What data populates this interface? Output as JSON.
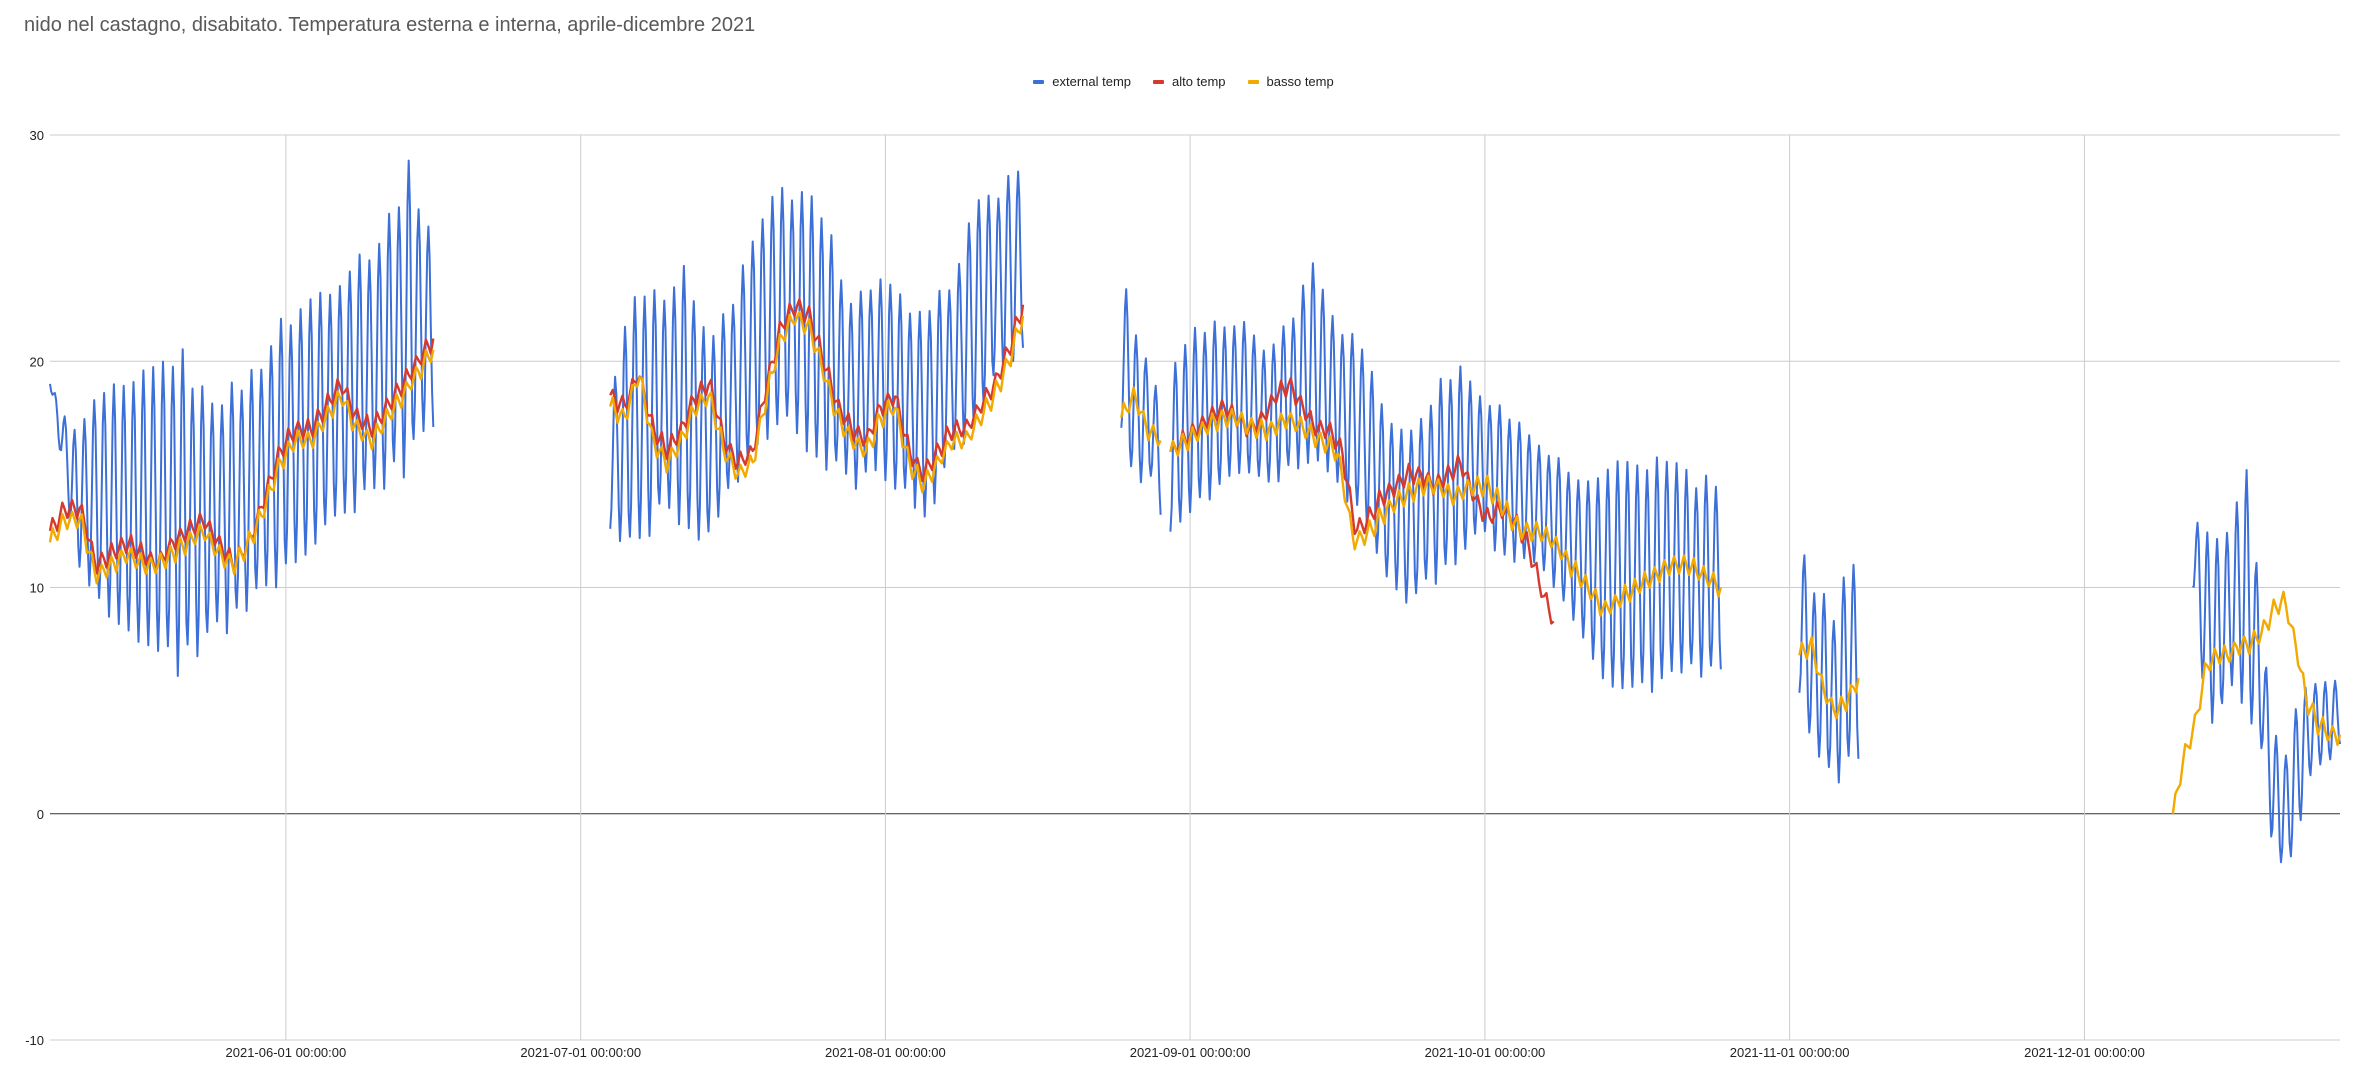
{
  "chart_data": {
    "type": "line",
    "title": "nido nel castagno, disabitato. Temperatura esterna e interna, aprile-dicembre 2021",
    "legend_position": "top-center",
    "grid": true,
    "xlim": [
      "2021-05-08",
      "2021-12-27"
    ],
    "ylim": [
      -10,
      30
    ],
    "y_ticks": [
      "-10",
      "0",
      "10",
      "20",
      "30"
    ],
    "x_ticks": [
      {
        "label": "2021-06-01 00:00:00",
        "date": "2021-06-01"
      },
      {
        "label": "2021-07-01 00:00:00",
        "date": "2021-07-01"
      },
      {
        "label": "2021-08-01 00:00:00",
        "date": "2021-08-01"
      },
      {
        "label": "2021-09-01 00:00:00",
        "date": "2021-09-01"
      },
      {
        "label": "2021-10-01 00:00:00",
        "date": "2021-10-01"
      },
      {
        "label": "2021-11-01 00:00:00",
        "date": "2021-11-01"
      },
      {
        "label": "2021-12-01 00:00:00",
        "date": "2021-12-01"
      }
    ],
    "series": [
      {
        "name": "external  temp",
        "color": "#3c6fd8",
        "segments": [
          {
            "start": "2021-05-08",
            "end": "2021-06-16",
            "min": [
              19,
              11,
              9,
              8,
              7,
              6,
              7,
              8,
              9,
              10,
              11,
              12,
              13,
              14,
              15,
              17
            ],
            "max": [
              19,
              17,
              19,
              19,
              20,
              21,
              19,
              19,
              20,
              22,
              23,
              24,
              25,
              26,
              29,
              26
            ]
          },
          {
            "start": "2021-07-04",
            "end": "2021-08-15",
            "min": [
              12,
              11,
              13,
              12,
              12,
              14,
              16,
              17,
              16,
              15,
              14,
              15,
              14,
              13,
              15,
              17,
              19,
              20
            ],
            "max": [
              19,
              24,
              23,
              25,
              21,
              23,
              26,
              28,
              28,
              26,
              23,
              24,
              23,
              22,
              24,
              27,
              28,
              29
            ]
          },
          {
            "start": "2021-08-25",
            "end": "2021-08-29",
            "min": [
              17,
              14,
              15,
              13
            ],
            "max": [
              24,
              22,
              20,
              19
            ]
          },
          {
            "start": "2021-08-30",
            "end": "2021-10-25",
            "min": [
              12,
              13,
              14,
              15,
              14,
              15,
              15,
              14,
              13,
              10,
              9,
              10,
              11,
              12,
              11,
              11,
              10,
              8,
              6,
              5,
              5,
              6,
              6,
              6
            ],
            "max": [
              20,
              22,
              22,
              22,
              21,
              22,
              25,
              22,
              21,
              18,
              17,
              19,
              20,
              19,
              18,
              17,
              16,
              15,
              15,
              16,
              16,
              16,
              15,
              15
            ]
          },
          {
            "start": "2021-11-02",
            "end": "2021-11-08",
            "min": [
              5,
              3,
              2,
              1,
              2,
              2
            ],
            "max": [
              13,
              10,
              10,
              9,
              11,
              12
            ]
          },
          {
            "start": "2021-12-12",
            "end": "2021-12-27",
            "min": [
              10,
              4,
              4,
              5,
              4,
              3,
              -2,
              -3,
              -1,
              2,
              2,
              3
            ],
            "max": [
              13,
              13,
              12,
              14,
              16,
              10,
              4,
              3,
              6,
              6,
              6,
              6
            ]
          }
        ]
      },
      {
        "name": "alto temp",
        "color": "#d63a2f",
        "segments": [
          {
            "start": "2021-05-08",
            "end": "2021-06-16",
            "values": [
              12.5,
              13.5,
              13.5,
              11,
              11.5,
              12,
              11.5,
              11,
              12,
              12.5,
              13,
              12,
              11,
              12,
              14,
              16,
              17,
              17,
              18,
              19,
              17.5,
              17,
              18,
              19,
              20,
              21
            ]
          },
          {
            "start": "2021-07-04",
            "end": "2021-08-15",
            "values": [
              18.5,
              18,
              19.5,
              17,
              16,
              17,
              18.5,
              19,
              16.5,
              15.5,
              16,
              19,
              21.5,
              22.5,
              22,
              20,
              18,
              17,
              16.5,
              18,
              18.5,
              16,
              15,
              16,
              17,
              17,
              18,
              19,
              20.5,
              22.5
            ]
          },
          {
            "start": "2021-08-30",
            "end": "2021-10-08",
            "values": [
              16,
              16.5,
              17,
              17.5,
              18,
              17.5,
              17,
              17.5,
              18.5,
              19,
              18,
              17,
              17,
              16,
              12.5,
              13,
              14,
              14.5,
              15,
              15,
              14.5,
              15,
              15.5,
              14,
              13,
              13.5,
              13,
              12,
              10,
              8.5
            ]
          }
        ]
      },
      {
        "name": "basso  temp",
        "color": "#f2a900",
        "segments": [
          {
            "start": "2021-05-08",
            "end": "2021-06-16",
            "values": [
              12,
              13,
              13,
              10.5,
              11,
              11.5,
              11,
              11,
              11.5,
              12,
              12.5,
              11.5,
              11,
              12,
              13.5,
              15.5,
              16.5,
              16.5,
              17.5,
              18.5,
              17,
              16.5,
              17.5,
              18.5,
              19.5,
              20.5
            ]
          },
          {
            "start": "2021-07-04",
            "end": "2021-08-15",
            "values": [
              18,
              17.5,
              19.5,
              16.5,
              15.5,
              16.5,
              18,
              18.5,
              16,
              15,
              15.5,
              18.5,
              21,
              22,
              21.5,
              19.5,
              17.5,
              16.5,
              16,
              17.5,
              18,
              15.5,
              14.5,
              15.5,
              16.5,
              16.5,
              17.5,
              18.5,
              20,
              22
            ]
          },
          {
            "start": "2021-08-25",
            "end": "2021-08-29",
            "values": [
              17.5,
              18.5,
              17,
              16.5
            ]
          },
          {
            "start": "2021-08-30",
            "end": "2021-10-25",
            "values": [
              16,
              16.5,
              17,
              17.5,
              17.5,
              17,
              17,
              17.5,
              17,
              16.5,
              16,
              12,
              12.5,
              13.5,
              14,
              14.5,
              14.5,
              14,
              14.5,
              14.5,
              13.5,
              12.5,
              12.5,
              12,
              11,
              10,
              9,
              9.5,
              10,
              10.5,
              11,
              11,
              10.5,
              10
            ]
          },
          {
            "start": "2021-11-02",
            "end": "2021-11-08",
            "values": [
              7,
              7.5,
              5.5,
              4.5,
              5,
              6
            ]
          },
          {
            "start": "2021-12-10",
            "end": "2021-12-27",
            "values": [
              0,
              2.5,
              4,
              6.5,
              7,
              7,
              7.5,
              7.5,
              8,
              9,
              9.5,
              7.5,
              5,
              4,
              3.5,
              3.5
            ]
          }
        ]
      }
    ]
  }
}
